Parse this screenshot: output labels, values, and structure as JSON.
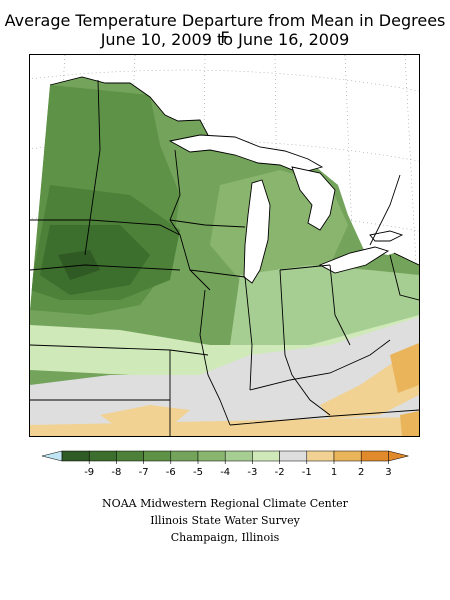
{
  "title_line1": "Average Temperature Departure from Mean in Degrees F",
  "title_line2": "June 10, 2009 to June 16, 2009",
  "legend": {
    "ticks": [
      "-9",
      "-8",
      "-7",
      "-6",
      "-5",
      "-4",
      "-3",
      "-2",
      "-1",
      "1",
      "2",
      "3"
    ],
    "colors": [
      "#2f5a23",
      "#3c6e2d",
      "#4d8039",
      "#5e9247",
      "#74a45b",
      "#89b56f",
      "#a6cd92",
      "#cfe9b9",
      "#dedede",
      "#f1d293",
      "#eab45a",
      "#e08a2c"
    ],
    "end_low_color": "#bfe6f2",
    "end_high_color": "#e08a2c"
  },
  "credits": {
    "line1": "NOAA Midwestern Regional Climate Center",
    "line2": "Illinois State Water Survey",
    "line3": "Champaign, Illinois"
  },
  "map_colors": {
    "water": "#ffffff",
    "boundary": "#000000",
    "graticule": "#999999"
  }
}
